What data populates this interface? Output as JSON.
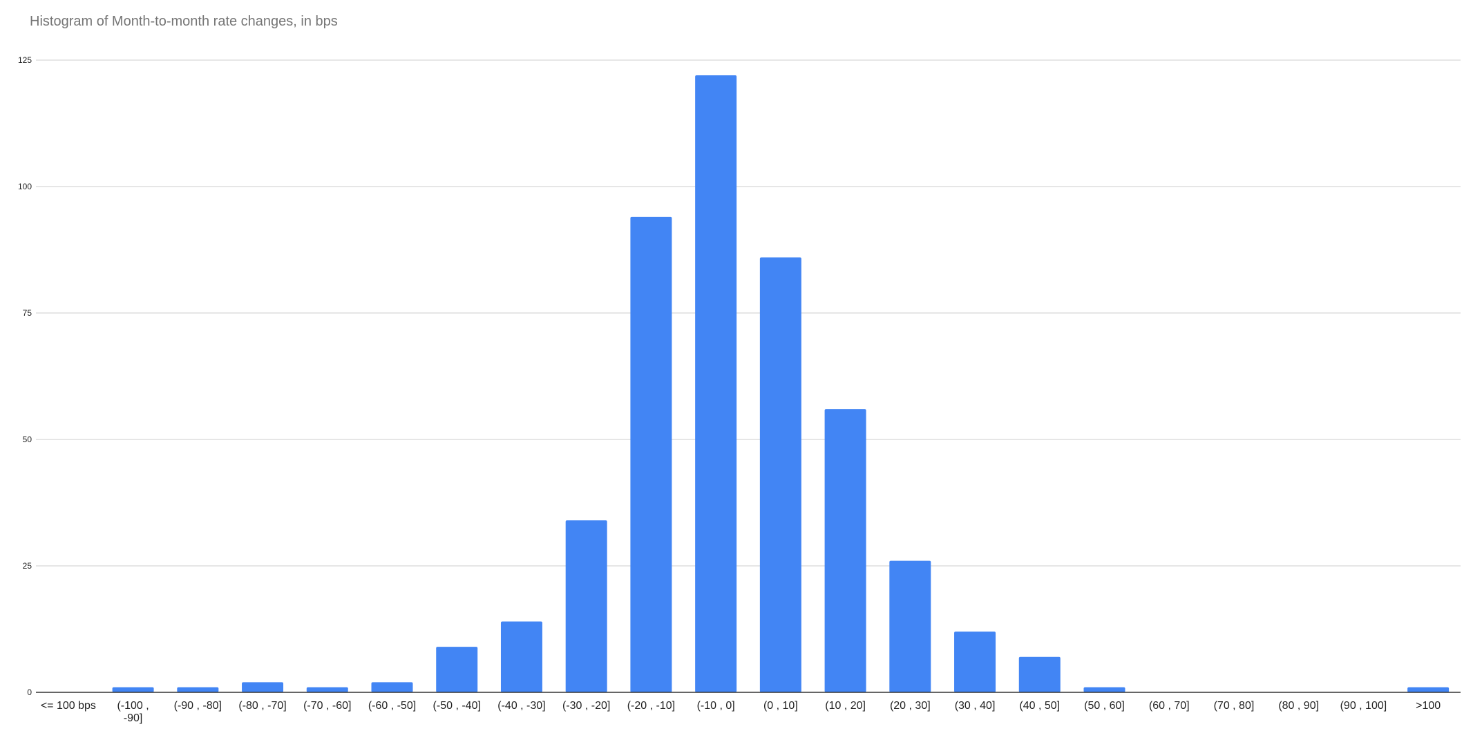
{
  "chart_data": {
    "type": "bar",
    "title": "Histogram of Month-to-month rate changes, in bps",
    "xlabel": "",
    "ylabel": "",
    "categories": [
      "<= 100 bps",
      "(-100 , -90]",
      "(-90 , -80]",
      "(-80 , -70]",
      "(-70 , -60]",
      "(-60 , -50]",
      "(-50 , -40]",
      "(-40 , -30]",
      "(-30 , -20]",
      "(-20 , -10]",
      "(-10 , 0]",
      "(0 , 10]",
      "(10 , 20]",
      "(20 , 30]",
      "(30 , 40]",
      "(40 , 50]",
      "(50 , 60]",
      "(60 , 70]",
      "(70 , 80]",
      "(80 , 90]",
      "(90 , 100]",
      ">100"
    ],
    "values": [
      0,
      1,
      1,
      2,
      1,
      2,
      9,
      14,
      34,
      94,
      122,
      86,
      56,
      26,
      12,
      7,
      1,
      0,
      0,
      0,
      0,
      1
    ],
    "ylim": [
      0,
      125
    ],
    "yticks": [
      0,
      25,
      50,
      75,
      100,
      125
    ],
    "grid": true,
    "legend": "none",
    "bar_color": "#4285f4"
  }
}
